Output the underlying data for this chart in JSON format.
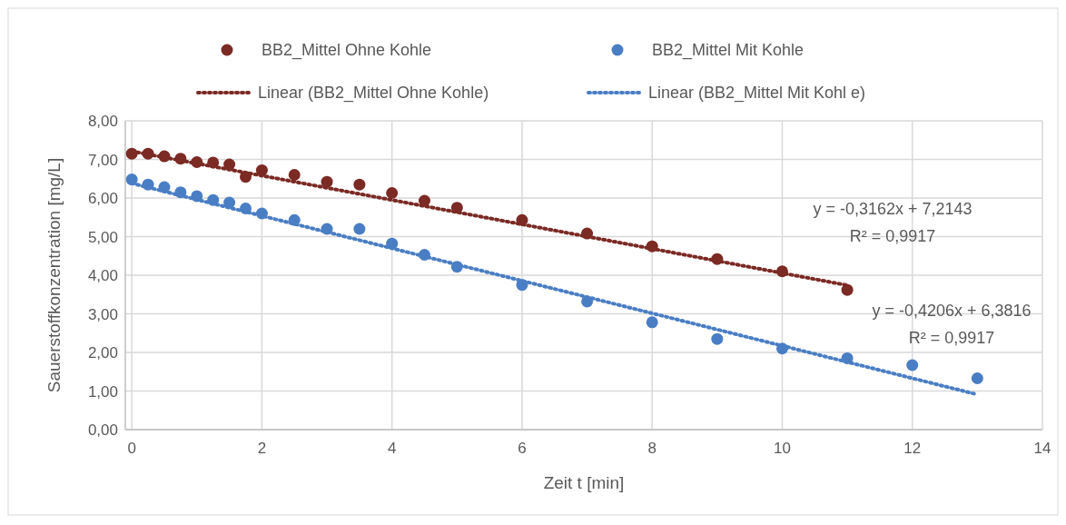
{
  "chart_data": {
    "type": "scatter",
    "xlabel": "Zeit t [min]",
    "ylabel": "Sauerstoffkonzentration [mg/L]",
    "xlim": [
      -0.1,
      14
    ],
    "xticks": [
      0,
      2,
      4,
      6,
      8,
      10,
      12,
      14
    ],
    "ylim": [
      0,
      8
    ],
    "yticks": [
      {
        "value": 0,
        "label": "0,00"
      },
      {
        "value": 1,
        "label": "1,00"
      },
      {
        "value": 2,
        "label": "2,00"
      },
      {
        "value": 3,
        "label": "3,00"
      },
      {
        "value": 4,
        "label": "4,00"
      },
      {
        "value": 5,
        "label": "5,00"
      },
      {
        "value": 6,
        "label": "6,00"
      },
      {
        "value": 7,
        "label": "7,00"
      },
      {
        "value": 8,
        "label": "8,00"
      }
    ],
    "grid": true,
    "legend": "top",
    "marker": "circle",
    "series": [
      {
        "name": "BB2_Mittel Ohne Kohle",
        "color": "#7b2a24",
        "x": [
          0,
          0.25,
          0.5,
          0.75,
          1,
          1.25,
          1.5,
          1.75,
          2,
          2.5,
          3,
          3.5,
          4,
          4.5,
          5,
          6,
          7,
          8,
          9,
          10,
          11
        ],
        "values": [
          7.15,
          7.15,
          7.08,
          7.02,
          6.93,
          6.92,
          6.87,
          6.55,
          6.72,
          6.6,
          6.42,
          6.35,
          6.13,
          5.93,
          5.75,
          5.43,
          5.08,
          4.75,
          4.42,
          4.1,
          3.62
        ]
      },
      {
        "name": "BB2_Mittel Mit Kohle",
        "color": "#4a7ec4",
        "x": [
          0,
          0.25,
          0.5,
          0.75,
          1,
          1.25,
          1.5,
          1.75,
          2,
          2.5,
          3,
          3.5,
          4,
          4.5,
          5,
          6,
          7,
          8,
          9,
          10,
          11,
          12,
          13
        ],
        "values": [
          6.48,
          6.35,
          6.28,
          6.15,
          6.05,
          5.95,
          5.88,
          5.73,
          5.6,
          5.43,
          5.2,
          5.2,
          4.82,
          4.53,
          4.22,
          3.75,
          3.32,
          2.78,
          2.35,
          2.1,
          1.85,
          1.67,
          1.33
        ]
      },
      {
        "name": "Linear (BB2_Mittel Ohne Kohle)",
        "type": "line",
        "line_style": "dotted",
        "color": "#7b2a24",
        "marker": "none",
        "x": [
          0,
          11
        ],
        "values": [
          7.21,
          3.74
        ]
      },
      {
        "name": "Linear (BB2_Mittel Mit Kohl e)",
        "type": "line",
        "line_style": "dotted",
        "color": "#4a7ec4",
        "marker": "none",
        "x": [
          0,
          13
        ],
        "values": [
          6.38,
          0.91
        ]
      }
    ],
    "annotations": [
      "y = -0,3162x + 7,2143",
      "R² = 0,9917",
      "y = -0,4206x + 6,3816",
      "R² = 0,9917"
    ]
  }
}
